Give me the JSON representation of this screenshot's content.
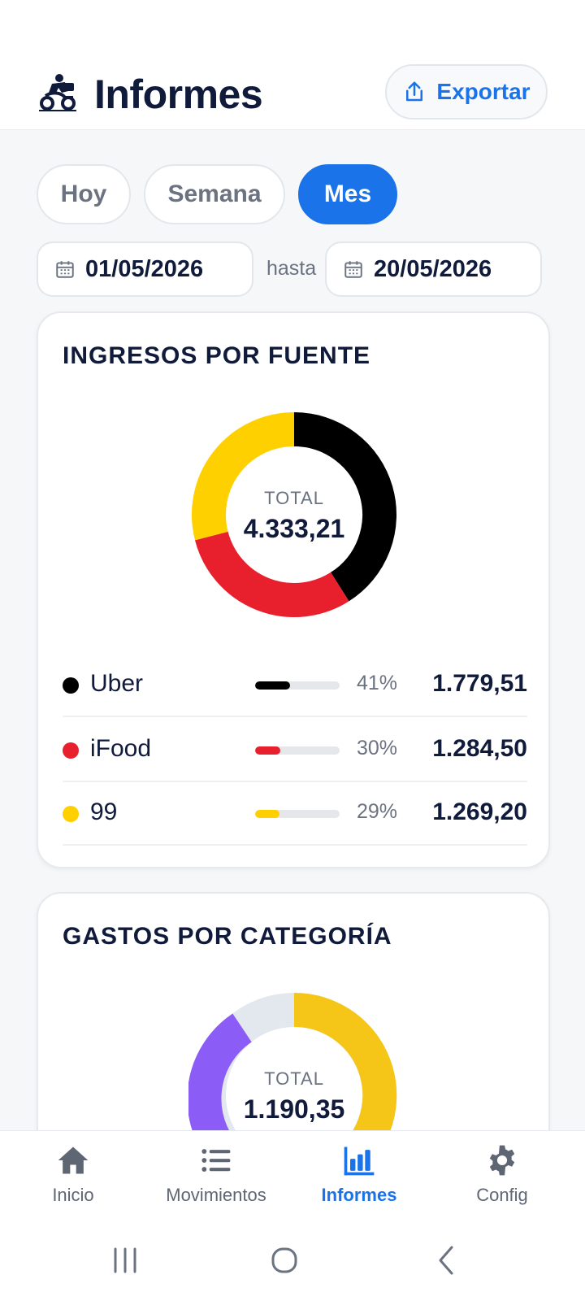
{
  "header": {
    "title": "Informes",
    "export_label": "Exportar"
  },
  "period_tabs": [
    {
      "label": "Hoy",
      "active": false
    },
    {
      "label": "Semana",
      "active": false
    },
    {
      "label": "Mes",
      "active": true
    }
  ],
  "date_range": {
    "start": "01/05/2026",
    "separator": "hasta",
    "end": "20/05/2026"
  },
  "income_card": {
    "title": "INGRESOS POR FUENTE",
    "total_label": "TOTAL",
    "total_value": "4.333,21",
    "sources": [
      {
        "name": "Uber",
        "percent_label": "41%",
        "percent": 41,
        "amount": "1.779,51",
        "color": "#000000"
      },
      {
        "name": "iFood",
        "percent_label": "30%",
        "percent": 30,
        "amount": "1.284,50",
        "color": "#e8202e"
      },
      {
        "name": "99",
        "percent_label": "29%",
        "percent": 29,
        "amount": "1.269,20",
        "color": "#ffd000"
      }
    ]
  },
  "expense_card": {
    "title": "GASTOS POR CATEGORÍA",
    "total_label": "TOTAL",
    "total_value": "1.190,35"
  },
  "bottom_nav": [
    {
      "label": "Inicio",
      "icon": "home-icon",
      "active": false
    },
    {
      "label": "Movimientos",
      "icon": "list-icon",
      "active": false
    },
    {
      "label": "Informes",
      "icon": "bar-chart-icon",
      "active": true
    },
    {
      "label": "Config",
      "icon": "gear-icon",
      "active": false
    }
  ],
  "colors": {
    "accent": "#1a73e8",
    "text": "#101a3a",
    "muted": "#6b7280"
  }
}
